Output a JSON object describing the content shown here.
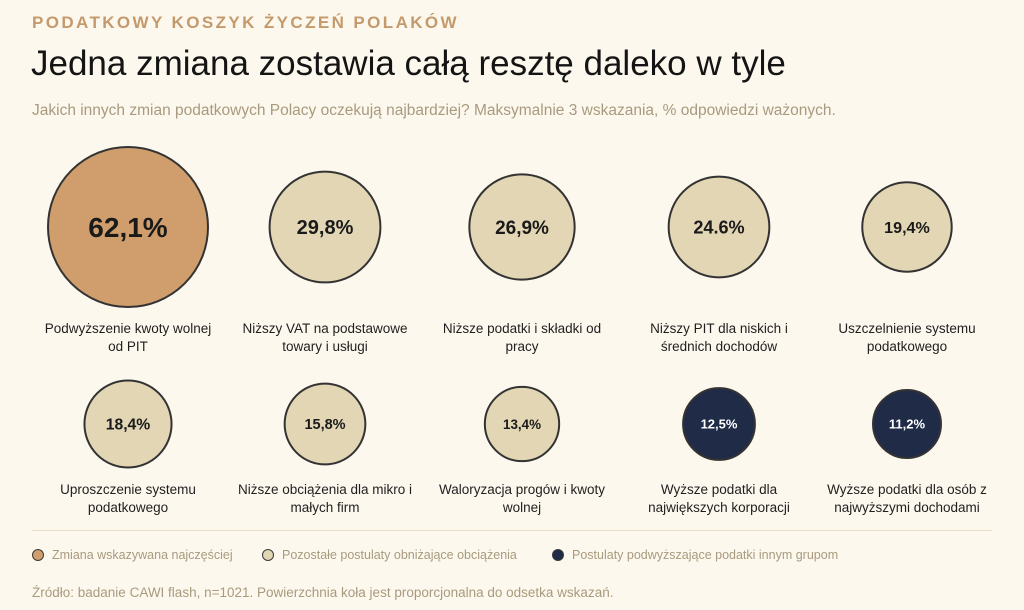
{
  "header": {
    "kicker": "PODATKOWY KOSZYK ŻYCZEŃ POLAKÓW",
    "headline": "Jedna zmiana zostawia całą resztę daleko w tyle",
    "subtitle": "Jakich innych zmian podatkowych Polacy oczekują najbardziej? Maksymalnie 3 wskazania, % odpowiedzi ważonych."
  },
  "chart_data": {
    "type": "bubble",
    "title": "Jedna zmiana zostawia całą resztę daleko w tyle",
    "unit": "%",
    "items": [
      {
        "label": "Podwyższenie kwoty wolnej od PIT",
        "label_lines": [
          "Podwyższenie kwoty wolnej",
          "od PIT"
        ],
        "value": 62.1,
        "display": "62,1%",
        "group": "top"
      },
      {
        "label": "Niższy VAT na podstawowe towary i usługi",
        "label_lines": [
          "Niższy VAT na podstawowe",
          "towary i usługi"
        ],
        "value": 29.8,
        "display": "29,8%",
        "group": "lower"
      },
      {
        "label": "Niższe podatki i składki od pracy",
        "label_lines": [
          "Niższe podatki i składki od",
          "pracy"
        ],
        "value": 26.9,
        "display": "26,9%",
        "group": "lower"
      },
      {
        "label": "Niższy PIT dla niskich i średnich dochodów",
        "label_lines": [
          "Niższy PIT dla niskich i",
          "średnich dochodów"
        ],
        "value": 24.6,
        "display": "24.6%",
        "group": "lower"
      },
      {
        "label": "Uszczelnienie systemu podatkowego",
        "label_lines": [
          "Uszczelnienie systemu",
          "podatkowego"
        ],
        "value": 19.4,
        "display": "19,4%",
        "group": "lower"
      },
      {
        "label": "Uproszczenie systemu podatkowego",
        "label_lines": [
          "Uproszczenie systemu",
          "podatkowego"
        ],
        "value": 18.4,
        "display": "18,4%",
        "group": "lower"
      },
      {
        "label": "Niższe obciążenia dla mikro i małych firm",
        "label_lines": [
          "Niższe obciążenia dla mikro i",
          "małych firm"
        ],
        "value": 15.8,
        "display": "15,8%",
        "group": "lower"
      },
      {
        "label": "Waloryzacja progów i kwoty wolnej",
        "label_lines": [
          "Waloryzacja progów i kwoty",
          "wolnej"
        ],
        "value": 13.4,
        "display": "13,4%",
        "group": "lower"
      },
      {
        "label": "Wyższe podatki dla największych korporacji",
        "label_lines": [
          "Wyższe podatki dla",
          "największych korporacji"
        ],
        "value": 12.5,
        "display": "12,5%",
        "group": "raise"
      },
      {
        "label": "Wyższe podatki dla osób z najwyższymi dochodami",
        "label_lines": [
          "Wyższe podatki dla osób z",
          "najwyższymi dochodami"
        ],
        "value": 11.2,
        "display": "11,2%",
        "group": "raise"
      }
    ],
    "groups": {
      "top": {
        "fill": "#cf9e6c",
        "text": "#1a1a1a"
      },
      "lower": {
        "fill": "#e2d6b5",
        "text": "#1a1a1a"
      },
      "raise": {
        "fill": "#1f2b47",
        "text": "#ffffff"
      }
    },
    "legend": [
      {
        "group": "top",
        "label": "Zmiana wskazywana najczęściej"
      },
      {
        "group": "lower",
        "label": "Pozostałe postulaty obniżające obciążenia"
      },
      {
        "group": "raise",
        "label": "Postulaty podwyższające podatki innym grupom"
      }
    ],
    "legend_placement": "bottom-left"
  },
  "footer": {
    "source": "Źródło: badanie CAWI flash, n=1021. Powierzchnia koła jest proporcjonalna do odsetka wskazań."
  }
}
